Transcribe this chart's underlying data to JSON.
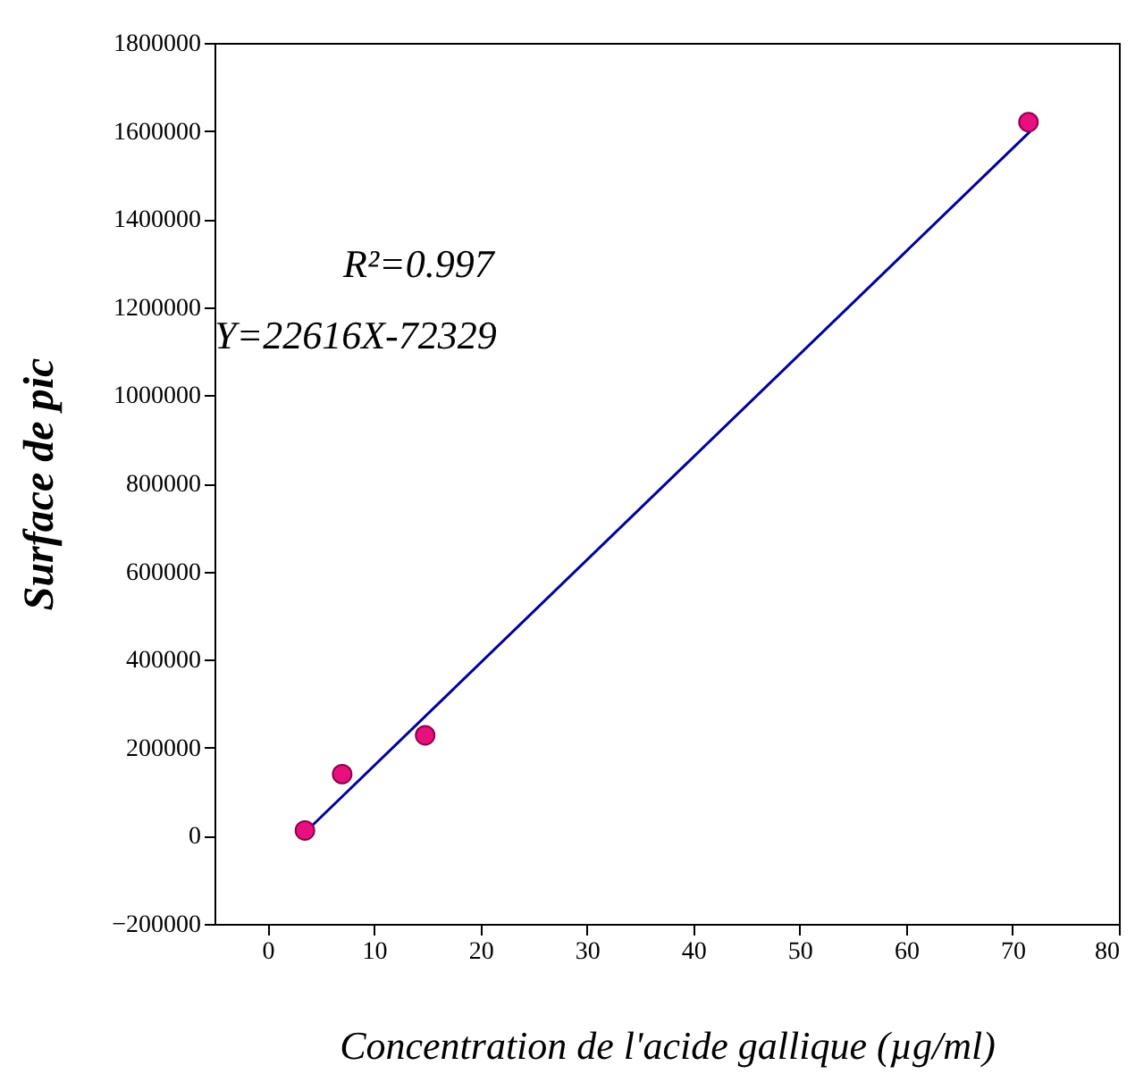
{
  "chart_data": {
    "type": "scatter",
    "xlabel": "Concentration de l'acide gallique (µg/ml)",
    "ylabel": "Surface de pic",
    "xlim": [
      -5,
      80
    ],
    "xticks": [
      0,
      10,
      20,
      30,
      40,
      50,
      60,
      70,
      80
    ],
    "ylim": [
      -200000,
      1800000
    ],
    "yticks": [
      -200000,
      0,
      200000,
      400000,
      600000,
      800000,
      1000000,
      1200000,
      1400000,
      1600000,
      1800000
    ],
    "grid": false,
    "annotations": [
      "R²=0.997",
      "Y=22616X-72329"
    ],
    "series": [
      {
        "marker": "circle",
        "color": "#e8107e",
        "x": [
          3.5,
          7,
          14.8,
          71.5
        ],
        "values": [
          12000,
          140000,
          228000,
          1620000
        ]
      },
      {
        "type": "line",
        "color": "#000099",
        "line_style": "solid",
        "x": [
          3.7,
          71.7
        ],
        "values": [
          12000,
          1600000
        ]
      }
    ]
  }
}
